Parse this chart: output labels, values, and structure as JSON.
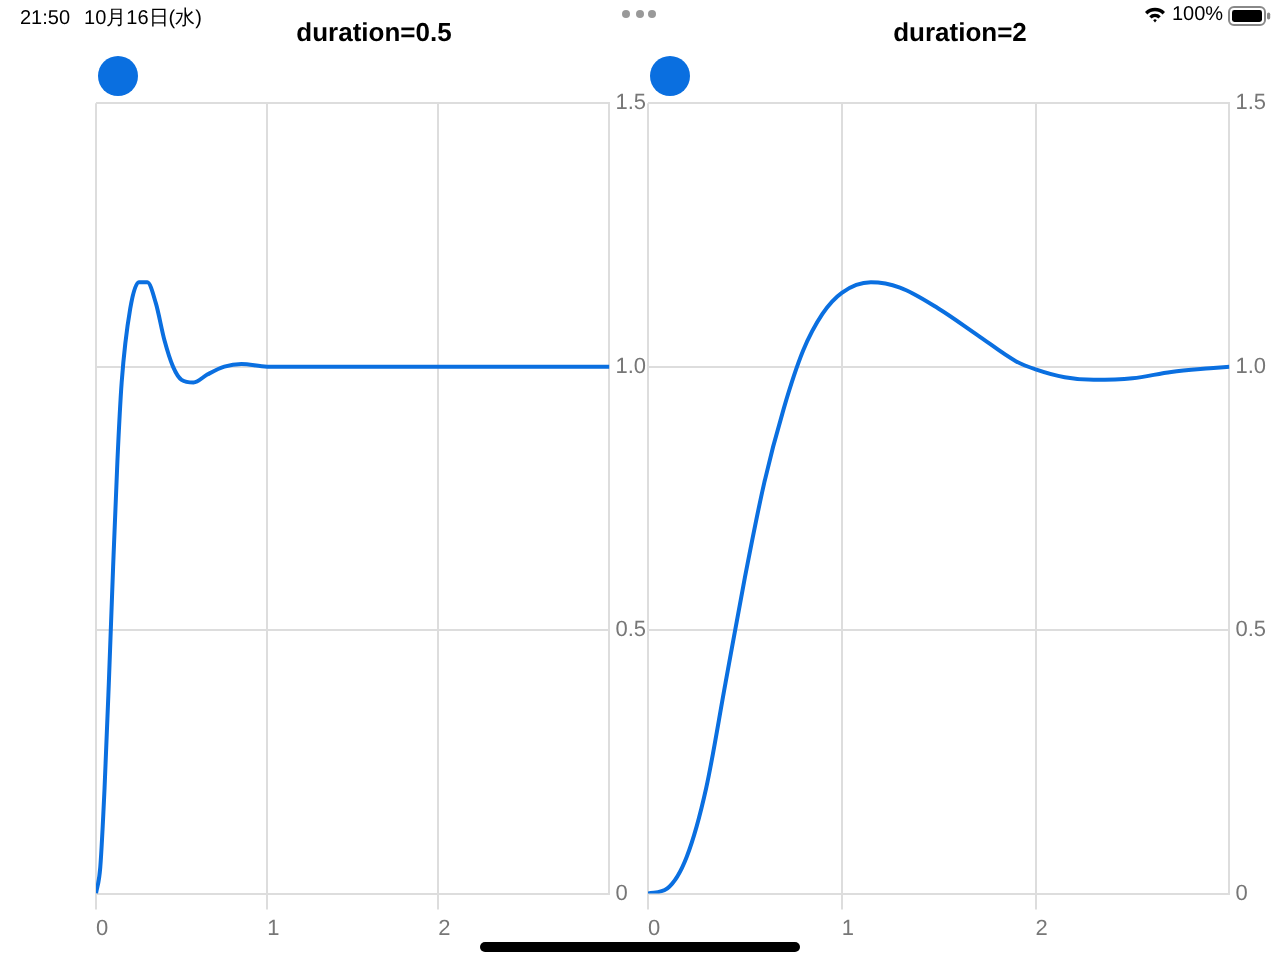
{
  "chart_data": [
    {
      "type": "line",
      "title": "duration=0.5",
      "annotations": [
        "21:50",
        "10月16日(水)"
      ],
      "x": [
        0,
        0.025,
        0.05,
        0.075,
        0.1,
        0.125,
        0.15,
        0.2,
        0.25,
        0.3,
        0.35,
        0.4,
        0.45,
        0.5,
        0.57,
        0.65,
        0.75,
        0.85,
        1.0,
        1.5,
        2.0,
        3.0
      ],
      "series": [
        {
          "color": "#0a6fe0",
          "values": [
            0,
            0.05,
            0.2,
            0.4,
            0.62,
            0.82,
            0.97,
            1.11,
            1.16,
            1.16,
            1.12,
            1.05,
            1.0,
            0.975,
            0.97,
            0.985,
            1.0,
            1.005,
            1.0,
            1.0,
            1.0,
            1.0
          ]
        }
      ],
      "xlim": [
        0,
        3
      ],
      "xticks": [
        0,
        1,
        2
      ],
      "ylim": [
        0,
        1.5
      ],
      "yticks": [
        0,
        0.5,
        {
          "value": 1,
          "label": "1.0"
        },
        1.5
      ],
      "grid": true,
      "legend": false,
      "marker": "none",
      "line_style": "solid"
    },
    {
      "type": "line",
      "title": "duration=2",
      "annotations": [
        "100%"
      ],
      "x": [
        0,
        0.1,
        0.2,
        0.3,
        0.4,
        0.5,
        0.6,
        0.7,
        0.8,
        0.9,
        1.0,
        1.15,
        1.3,
        1.5,
        1.7,
        1.9,
        2.0,
        2.15,
        2.3,
        2.5,
        2.7,
        2.9,
        3.0
      ],
      "series": [
        {
          "color": "#0a6fe0",
          "values": [
            0,
            0.01,
            0.07,
            0.2,
            0.4,
            0.6,
            0.78,
            0.92,
            1.03,
            1.1,
            1.14,
            1.16,
            1.15,
            1.11,
            1.06,
            1.01,
            0.995,
            0.98,
            0.975,
            0.978,
            0.99,
            0.997,
            1.0
          ]
        }
      ],
      "xlim": [
        0,
        3
      ],
      "xticks": [
        0,
        1,
        2
      ],
      "ylim": [
        0,
        1.5
      ],
      "yticks": [
        0,
        0.5,
        {
          "value": 1,
          "label": "1.0"
        },
        1.5
      ],
      "grid": true,
      "legend": false,
      "marker": "none",
      "line_style": "solid"
    }
  ]
}
